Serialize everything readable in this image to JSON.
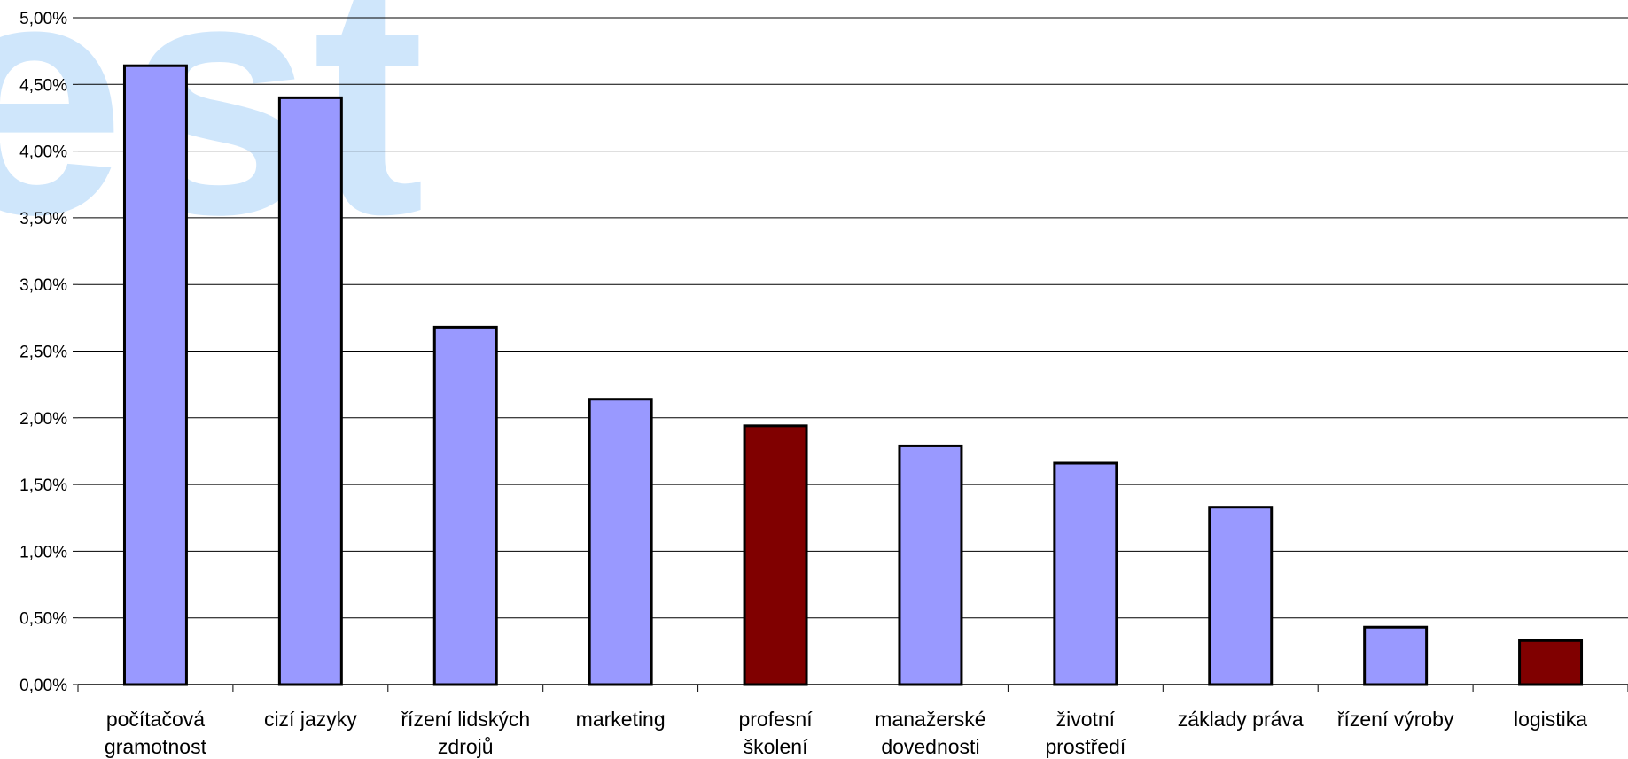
{
  "watermark": {
    "text": "est",
    "color": "#cfe6fb"
  },
  "chart_data": {
    "type": "bar",
    "title": "",
    "xlabel": "",
    "ylabel": "",
    "ylim": [
      0,
      0.05
    ],
    "y_ticks": [
      "0,00%",
      "0,50%",
      "1,00%",
      "1,50%",
      "2,00%",
      "2,50%",
      "3,00%",
      "3,50%",
      "4,00%",
      "4,50%",
      "5,00%"
    ],
    "grid": true,
    "legend": "none",
    "categories": [
      [
        "počítačová",
        "gramotnost"
      ],
      [
        "cizí jazyky"
      ],
      [
        "řízení lidských",
        "zdrojů"
      ],
      [
        "marketing"
      ],
      [
        "profesní",
        "školení"
      ],
      [
        "manažerské",
        "dovednosti"
      ],
      [
        "životní",
        "prostředí"
      ],
      [
        "základy práva"
      ],
      [
        "řízení výroby"
      ],
      [
        "logistika"
      ]
    ],
    "values": [
      0.0464,
      0.044,
      0.0268,
      0.0214,
      0.0194,
      0.0179,
      0.0166,
      0.0133,
      0.0043,
      0.0033
    ],
    "bar_colors": [
      "#9999ff",
      "#9999ff",
      "#9999ff",
      "#9999ff",
      "#800000",
      "#9999ff",
      "#9999ff",
      "#9999ff",
      "#9999ff",
      "#800000"
    ]
  }
}
